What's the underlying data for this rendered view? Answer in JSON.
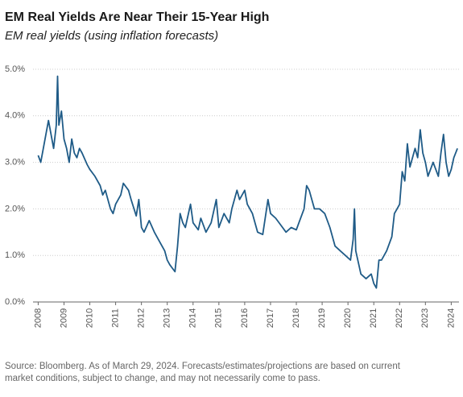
{
  "chart_data": {
    "type": "line",
    "title": "EM Real Yields Are Near Their 15-Year High",
    "subtitle": "EM real yields (using inflation forecasts)",
    "source": [
      "Source: Bloomberg. As of March 29, 2024. Forecasts/estimates/projections are based on current",
      "market conditions, subject to change, and may not necessarily come to pass."
    ],
    "x": [
      2008.0,
      2008.1,
      2008.2,
      2008.3,
      2008.4,
      2008.5,
      2008.6,
      2008.7,
      2008.75,
      2008.8,
      2008.9,
      2009.0,
      2009.1,
      2009.2,
      2009.3,
      2009.4,
      2009.5,
      2009.6,
      2009.7,
      2009.9,
      2010.0,
      2010.2,
      2010.4,
      2010.5,
      2010.6,
      2010.8,
      2010.9,
      2011.0,
      2011.2,
      2011.3,
      2011.5,
      2011.6,
      2011.8,
      2011.9,
      2012.0,
      2012.1,
      2012.3,
      2012.5,
      2012.7,
      2012.9,
      2013.0,
      2013.1,
      2013.3,
      2013.4,
      2013.5,
      2013.6,
      2013.7,
      2013.9,
      2014.0,
      2014.2,
      2014.3,
      2014.5,
      2014.7,
      2014.9,
      2015.0,
      2015.2,
      2015.4,
      2015.5,
      2015.7,
      2015.8,
      2016.0,
      2016.1,
      2016.3,
      2016.5,
      2016.7,
      2016.9,
      2017.0,
      2017.2,
      2017.4,
      2017.6,
      2017.8,
      2018.0,
      2018.1,
      2018.3,
      2018.4,
      2018.5,
      2018.7,
      2018.9,
      2019.1,
      2019.3,
      2019.5,
      2019.7,
      2019.9,
      2020.1,
      2020.2,
      2020.25,
      2020.3,
      2020.5,
      2020.7,
      2020.9,
      2021.0,
      2021.1,
      2021.2,
      2021.3,
      2021.5,
      2021.7,
      2021.8,
      2021.9,
      2022.0,
      2022.1,
      2022.2,
      2022.3,
      2022.4,
      2022.6,
      2022.7,
      2022.8,
      2022.9,
      2023.0,
      2023.1,
      2023.3,
      2023.5,
      2023.6,
      2023.7,
      2023.8,
      2023.9,
      2024.0,
      2024.1,
      2024.24
    ],
    "series": [
      {
        "name": "EM real yields",
        "color": "#1f5b87",
        "values": [
          3.15,
          3.0,
          3.3,
          3.6,
          3.9,
          3.6,
          3.3,
          3.8,
          4.85,
          3.8,
          4.1,
          3.5,
          3.3,
          3.0,
          3.5,
          3.2,
          3.1,
          3.3,
          3.2,
          2.95,
          2.85,
          2.7,
          2.5,
          2.3,
          2.4,
          2.0,
          1.9,
          2.1,
          2.3,
          2.55,
          2.4,
          2.2,
          1.85,
          2.2,
          1.6,
          1.5,
          1.75,
          1.5,
          1.3,
          1.1,
          0.9,
          0.8,
          0.65,
          1.2,
          1.9,
          1.7,
          1.6,
          2.1,
          1.7,
          1.55,
          1.8,
          1.5,
          1.7,
          2.2,
          1.6,
          1.9,
          1.7,
          2.0,
          2.4,
          2.2,
          2.4,
          2.1,
          1.9,
          1.5,
          1.45,
          2.2,
          1.9,
          1.8,
          1.65,
          1.5,
          1.6,
          1.55,
          1.7,
          2.0,
          2.5,
          2.4,
          2.0,
          2.0,
          1.9,
          1.6,
          1.2,
          1.1,
          1.0,
          0.9,
          1.35,
          2.0,
          1.1,
          0.6,
          0.5,
          0.6,
          0.4,
          0.3,
          0.9,
          0.9,
          1.1,
          1.4,
          1.9,
          2.0,
          2.1,
          2.8,
          2.6,
          3.4,
          2.9,
          3.3,
          3.1,
          3.7,
          3.2,
          3.0,
          2.7,
          3.0,
          2.7,
          3.2,
          3.6,
          3.0,
          2.7,
          2.85,
          3.1,
          3.3
        ]
      }
    ],
    "xlim": [
      2007.8,
      2024.3
    ],
    "xticks": [
      2008,
      2009,
      2010,
      2011,
      2012,
      2013,
      2014,
      2015,
      2016,
      2017,
      2018,
      2019,
      2020,
      2021,
      2022,
      2023,
      2024
    ],
    "ylim": [
      0,
      5
    ],
    "yticks": [
      {
        "value": 0,
        "label": "0.0%"
      },
      {
        "value": 1,
        "label": "1.0%"
      },
      {
        "value": 2,
        "label": "2.0%"
      },
      {
        "value": 3,
        "label": "3.0%"
      },
      {
        "value": 4,
        "label": "4.0%"
      },
      {
        "value": 5,
        "label": "5.0%"
      }
    ],
    "grid": true
  }
}
